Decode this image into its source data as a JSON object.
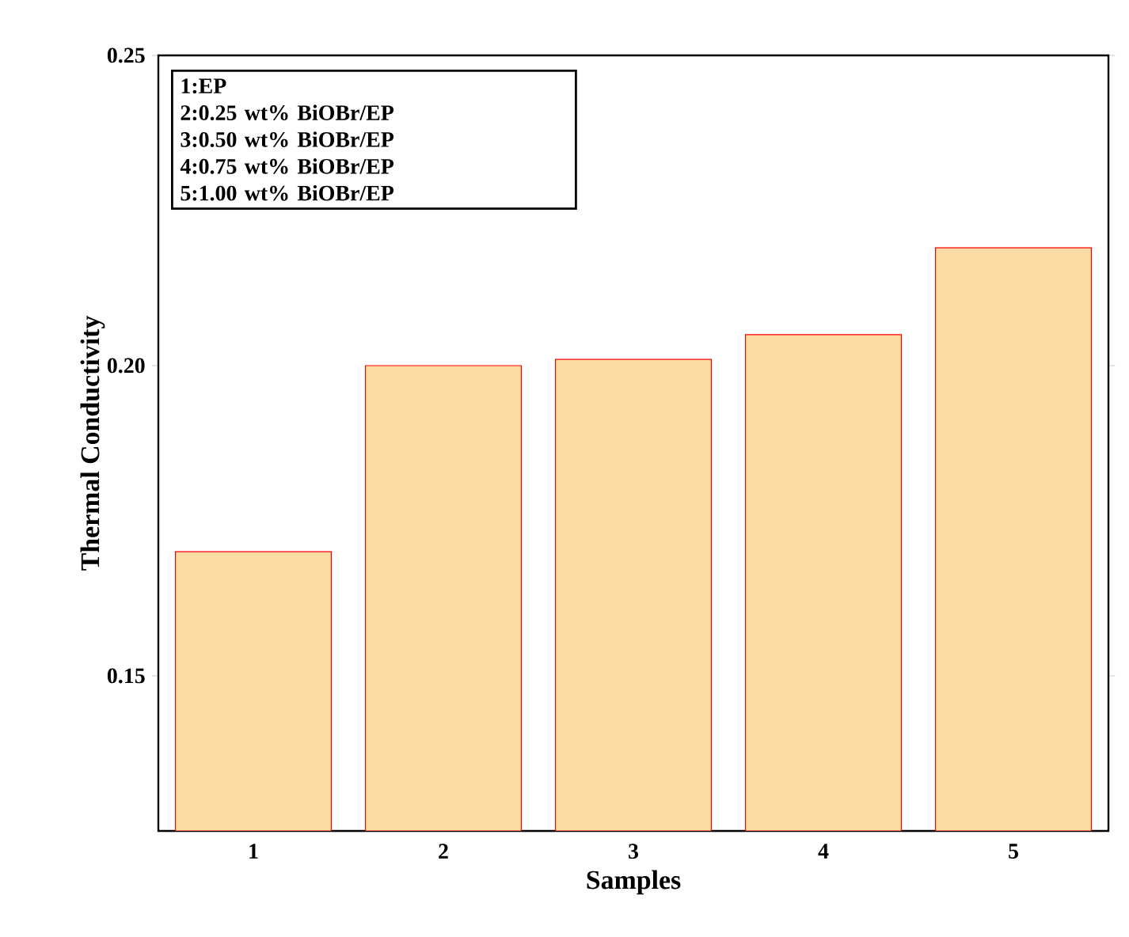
{
  "chart_data": {
    "type": "bar",
    "xlabel": "Samples",
    "ylabel": "Thermal Conductivity",
    "categories": [
      "1",
      "2",
      "3",
      "4",
      "5"
    ],
    "values": [
      0.17,
      0.2,
      0.201,
      0.205,
      0.219
    ],
    "color": "#fbdca4",
    "ylim": [
      0.125,
      0.25
    ],
    "yticks": [
      {
        "value": 0.15,
        "label": "0.15"
      },
      {
        "value": 0.2,
        "label": "0.20"
      },
      {
        "value": 0.25,
        "label": "0.25"
      }
    ],
    "annotations": [
      "1:EP",
      "2:0.25 wt% BiOBr/EP",
      "3:0.50 wt% BiOBr/EP",
      "4:0.75 wt% BiOBr/EP",
      "5:1.00 wt% BiOBr/EP"
    ]
  }
}
